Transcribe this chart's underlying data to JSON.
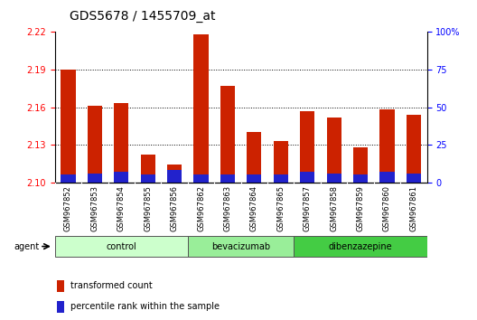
{
  "title": "GDS5678 / 1455709_at",
  "samples": [
    "GSM967852",
    "GSM967853",
    "GSM967854",
    "GSM967855",
    "GSM967856",
    "GSM967862",
    "GSM967863",
    "GSM967864",
    "GSM967865",
    "GSM967857",
    "GSM967858",
    "GSM967859",
    "GSM967860",
    "GSM967861"
  ],
  "transformed_counts": [
    2.19,
    2.161,
    2.163,
    2.122,
    2.114,
    2.218,
    2.177,
    2.14,
    2.133,
    2.157,
    2.152,
    2.128,
    2.158,
    2.154
  ],
  "percentile_ranks": [
    5,
    6,
    7,
    5,
    8,
    5,
    5,
    5,
    5,
    7,
    6,
    5,
    7,
    6
  ],
  "y_min": 2.1,
  "y_max": 2.22,
  "y_ticks": [
    2.1,
    2.13,
    2.16,
    2.19,
    2.22
  ],
  "right_y_ticks": [
    0,
    25,
    50,
    75,
    100
  ],
  "right_y_labels": [
    "0",
    "25",
    "50",
    "75",
    "100%"
  ],
  "groups": [
    {
      "name": "control",
      "indices": [
        0,
        1,
        2,
        3,
        4
      ],
      "color": "#ccffcc"
    },
    {
      "name": "bevacizumab",
      "indices": [
        5,
        6,
        7,
        8
      ],
      "color": "#99ee99"
    },
    {
      "name": "dibenzazepine",
      "indices": [
        9,
        10,
        11,
        12,
        13
      ],
      "color": "#44cc44"
    }
  ],
  "bar_color_red": "#cc2200",
  "bar_color_blue": "#2222cc",
  "bar_width": 0.55,
  "bg_color": "#ffffff",
  "title_fontsize": 10,
  "tick_fontsize": 7,
  "sample_fontsize": 6,
  "xtick_bg_color": "#cccccc",
  "agent_label": "agent"
}
